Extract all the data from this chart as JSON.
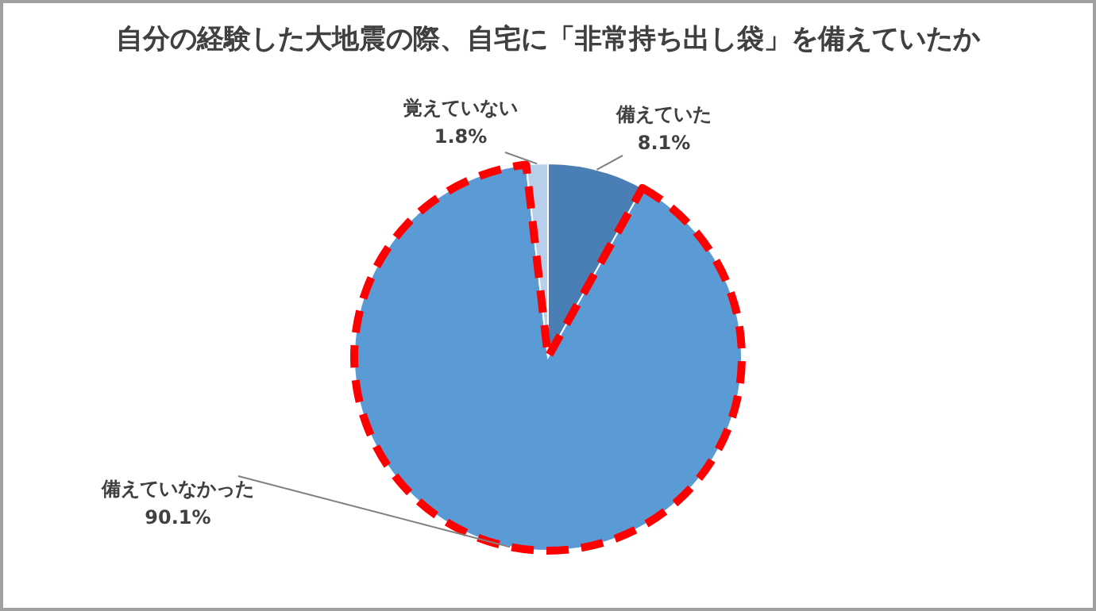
{
  "chart_data": {
    "type": "pie",
    "title": "自分の経験した大地震の際、自宅に「非常持ち出し袋」を備えていたか",
    "categories": [
      "備えていた",
      "備えていなかった",
      "覚えていない"
    ],
    "values": [
      8.1,
      90.1,
      1.8
    ],
    "colors": [
      "#4a7fb5",
      "#5b9bd5",
      "#b7cfea"
    ],
    "value_labels": [
      "8.1%",
      "90.1%",
      "1.8%"
    ]
  }
}
